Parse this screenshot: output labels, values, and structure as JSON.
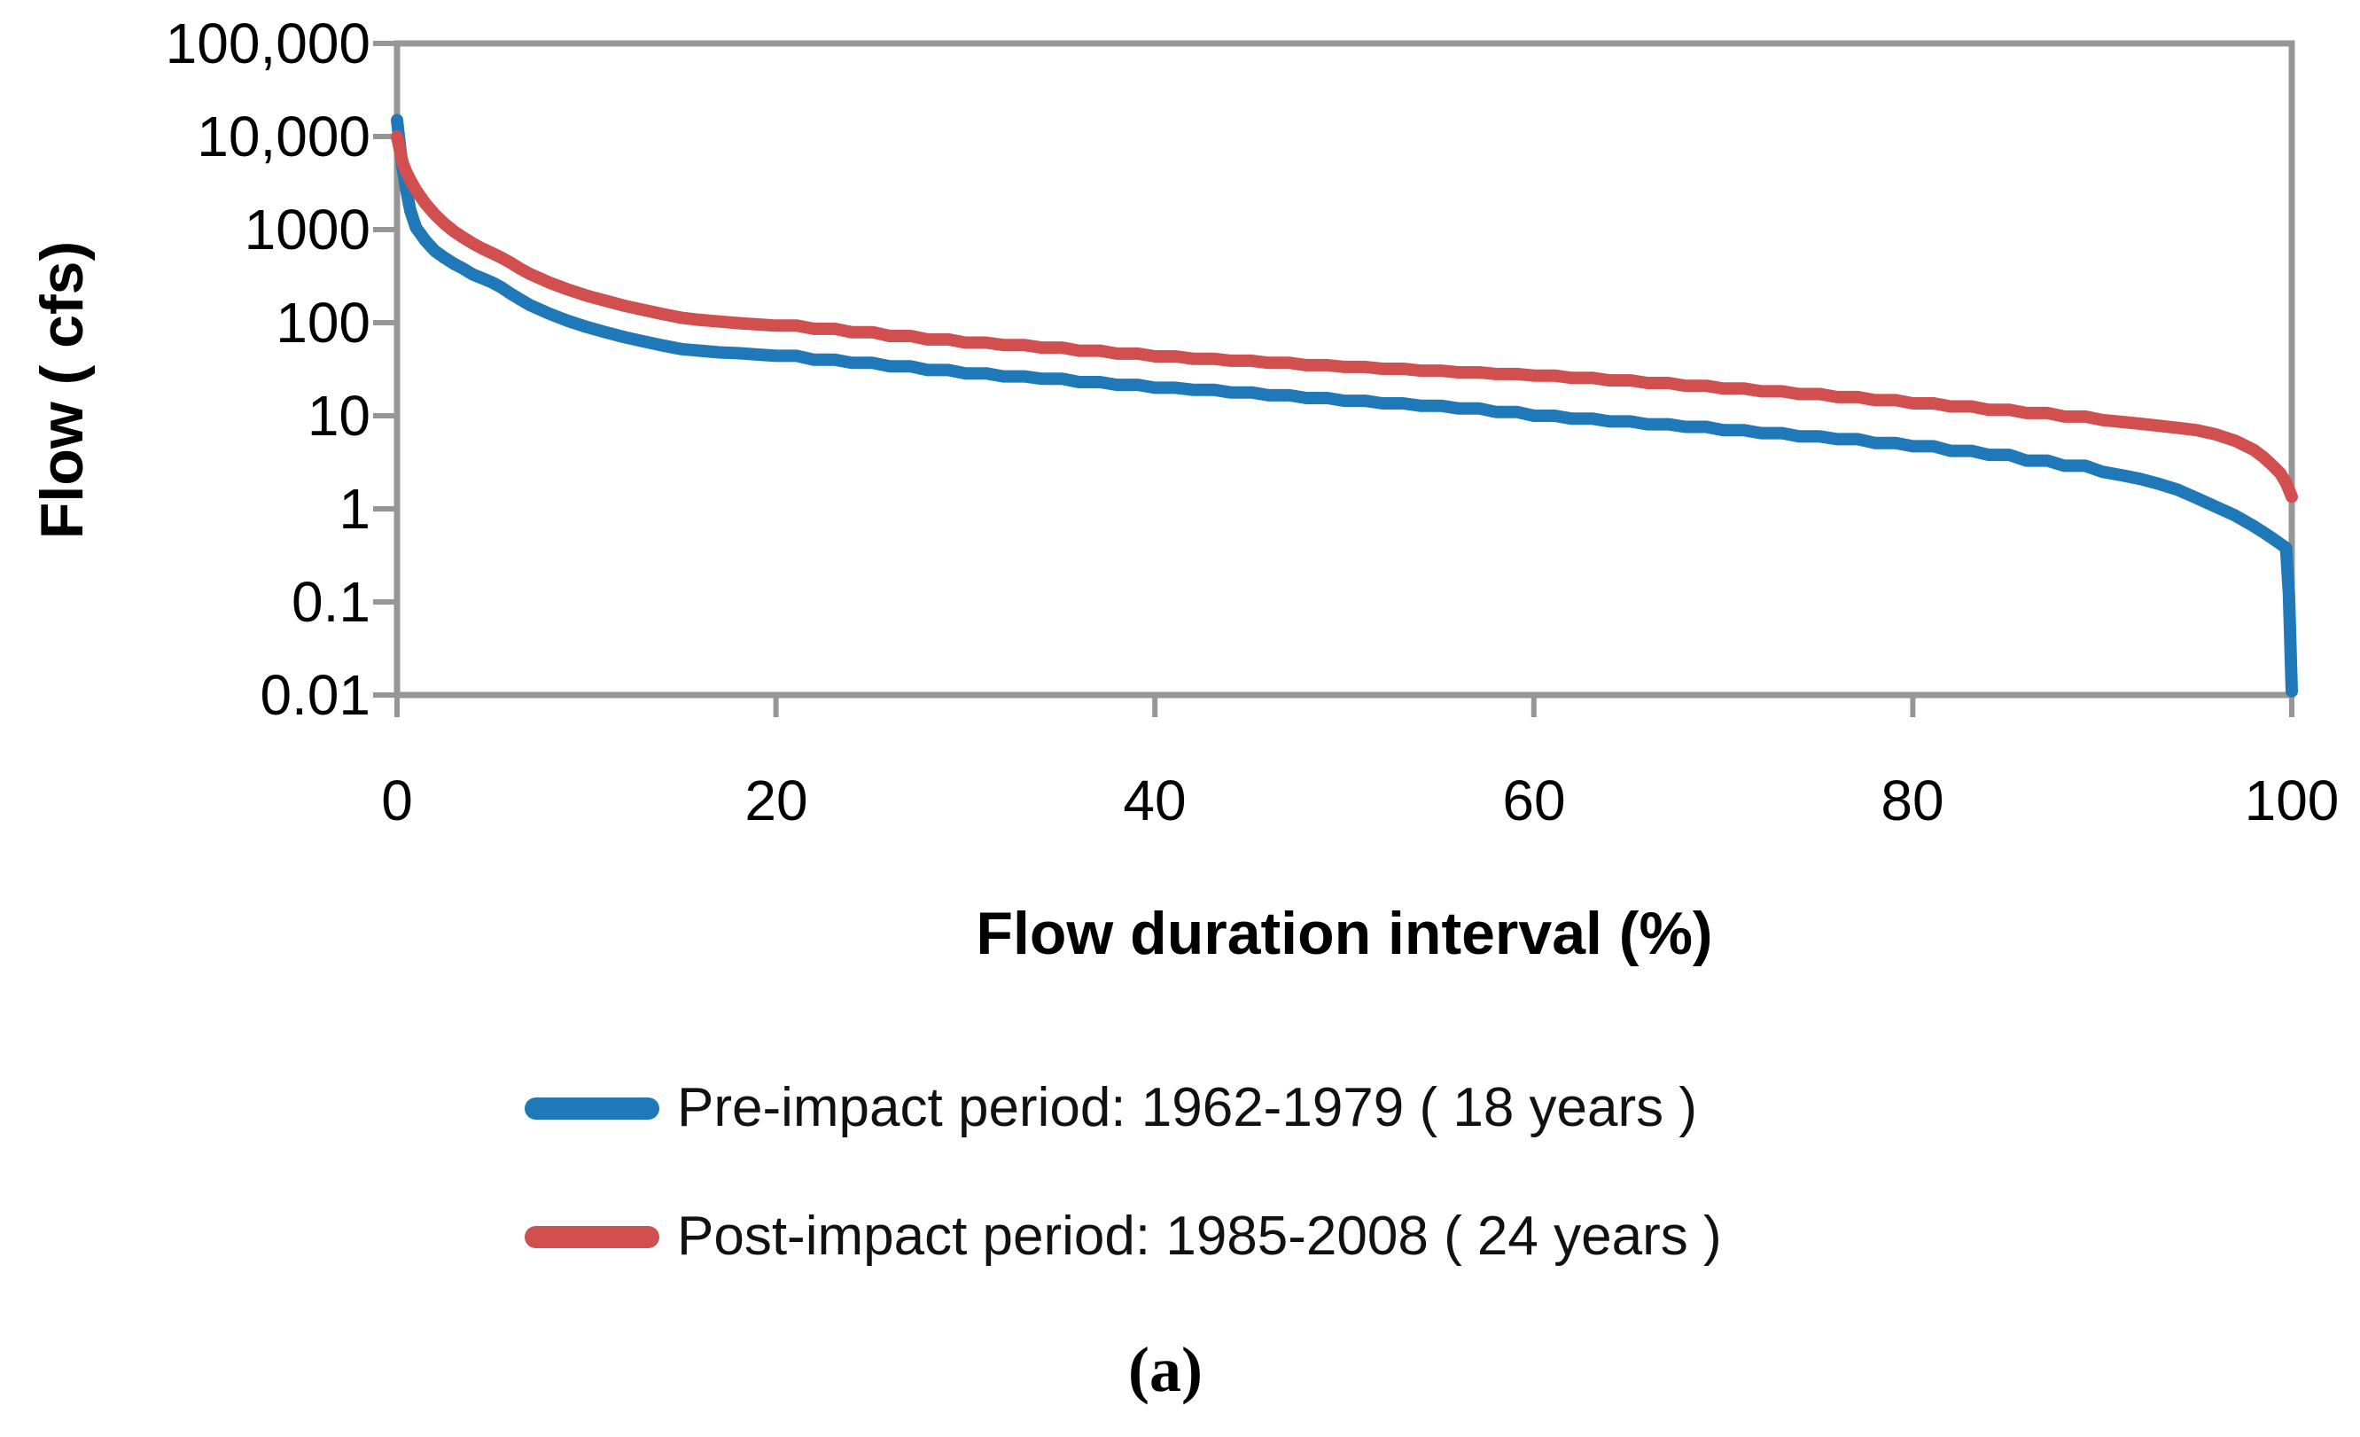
{
  "figure": {
    "background": "#FFFFFF",
    "caption": "(a)"
  },
  "chart_data": {
    "type": "line",
    "title": "",
    "xlabel": "Flow duration interval (%)",
    "ylabel": "Flow ( cfs)",
    "x_tick_labels": [
      "0",
      "20",
      "40",
      "60",
      "80",
      "100"
    ],
    "y_tick_labels": [
      "100,000",
      "10,000",
      "1000",
      "100",
      "10",
      "1",
      "0.1",
      "0.01"
    ],
    "xlim": [
      0,
      100
    ],
    "ylim": [
      0.01,
      100000
    ],
    "y_scale": "log",
    "grid": false,
    "axis_color": "#969696",
    "text_color": "#000000",
    "legend_position": "below-chart",
    "series": [
      {
        "name": "Pre-impact period: 1962-1979 ( 18 years )",
        "color": "#1F78B7",
        "points": [
          [
            0,
            15000
          ],
          [
            0.15,
            8000
          ],
          [
            0.3,
            4500
          ],
          [
            0.5,
            2600
          ],
          [
            0.7,
            1600
          ],
          [
            1,
            1050
          ],
          [
            1.5,
            760
          ],
          [
            2,
            590
          ],
          [
            2.5,
            500
          ],
          [
            3,
            430
          ],
          [
            3.5,
            380
          ],
          [
            4,
            330
          ],
          [
            4.5,
            300
          ],
          [
            5,
            272
          ],
          [
            5.5,
            240
          ],
          [
            6,
            205
          ],
          [
            6.5,
            178
          ],
          [
            7,
            155
          ],
          [
            8,
            126
          ],
          [
            9,
            105
          ],
          [
            10,
            90
          ],
          [
            11,
            79
          ],
          [
            12,
            70
          ],
          [
            13,
            63
          ],
          [
            14,
            57
          ],
          [
            15,
            52
          ],
          [
            16,
            50
          ],
          [
            17,
            48
          ],
          [
            18,
            47
          ],
          [
            19,
            45.5
          ],
          [
            20,
            44
          ],
          [
            22,
            40
          ],
          [
            24,
            37
          ],
          [
            26,
            34
          ],
          [
            28,
            31
          ],
          [
            30,
            28.5
          ],
          [
            32,
            26.5
          ],
          [
            34,
            25
          ],
          [
            36,
            23
          ],
          [
            38,
            21.5
          ],
          [
            40,
            20
          ],
          [
            42,
            19
          ],
          [
            44,
            17.8
          ],
          [
            46,
            16.6
          ],
          [
            48,
            15.5
          ],
          [
            50,
            14.5
          ],
          [
            52,
            13.6
          ],
          [
            54,
            12.8
          ],
          [
            56,
            12
          ],
          [
            58,
            11
          ],
          [
            60,
            10
          ],
          [
            62,
            9.3
          ],
          [
            64,
            8.7
          ],
          [
            66,
            8.1
          ],
          [
            68,
            7.6
          ],
          [
            70,
            7
          ],
          [
            72,
            6.5
          ],
          [
            74,
            6
          ],
          [
            76,
            5.6
          ],
          [
            78,
            5.1
          ],
          [
            80,
            4.7
          ],
          [
            82,
            4.2
          ],
          [
            84,
            3.8
          ],
          [
            86,
            3.3
          ],
          [
            88,
            2.9
          ],
          [
            90,
            2.5
          ],
          [
            91,
            2.3
          ],
          [
            92,
            2.1
          ],
          [
            93,
            1.85
          ],
          [
            94,
            1.6
          ],
          [
            95,
            1.3
          ],
          [
            96,
            1.05
          ],
          [
            97,
            0.85
          ],
          [
            98,
            0.65
          ],
          [
            98.5,
            0.56
          ],
          [
            99,
            0.48
          ],
          [
            99.4,
            0.42
          ],
          [
            99.7,
            0.38
          ],
          [
            99.85,
            0.12
          ],
          [
            100,
            0.011
          ]
        ]
      },
      {
        "name": "Post-impact period: 1985-2008 ( 24 years )",
        "color": "#D14F4F",
        "points": [
          [
            0,
            10000
          ],
          [
            0.15,
            7200
          ],
          [
            0.3,
            5200
          ],
          [
            0.5,
            4100
          ],
          [
            0.7,
            3400
          ],
          [
            1,
            2650
          ],
          [
            1.5,
            1900
          ],
          [
            2,
            1450
          ],
          [
            2.5,
            1160
          ],
          [
            3,
            960
          ],
          [
            3.5,
            820
          ],
          [
            4,
            710
          ],
          [
            4.5,
            625
          ],
          [
            5,
            560
          ],
          [
            5.5,
            500
          ],
          [
            6,
            440
          ],
          [
            6.5,
            380
          ],
          [
            7,
            335
          ],
          [
            8,
            272
          ],
          [
            9,
            228
          ],
          [
            10,
            195
          ],
          [
            11,
            172
          ],
          [
            12,
            152
          ],
          [
            13,
            137
          ],
          [
            14,
            124
          ],
          [
            15,
            113
          ],
          [
            16,
            107
          ],
          [
            17,
            103
          ],
          [
            18,
            99
          ],
          [
            19,
            96
          ],
          [
            20,
            93
          ],
          [
            22,
            86
          ],
          [
            24,
            79
          ],
          [
            26,
            72
          ],
          [
            28,
            66
          ],
          [
            30,
            61
          ],
          [
            32,
            57.5
          ],
          [
            34,
            54
          ],
          [
            36,
            50
          ],
          [
            38,
            46.5
          ],
          [
            40,
            43.5
          ],
          [
            42,
            41
          ],
          [
            44,
            39
          ],
          [
            46,
            37
          ],
          [
            48,
            35
          ],
          [
            50,
            33.5
          ],
          [
            52,
            32
          ],
          [
            54,
            30.5
          ],
          [
            56,
            29.3
          ],
          [
            58,
            28.1
          ],
          [
            60,
            27
          ],
          [
            62,
            25.5
          ],
          [
            64,
            24
          ],
          [
            66,
            22.5
          ],
          [
            68,
            21
          ],
          [
            70,
            19.6
          ],
          [
            72,
            18.3
          ],
          [
            74,
            17.1
          ],
          [
            76,
            15.9
          ],
          [
            78,
            14.7
          ],
          [
            80,
            13.6
          ],
          [
            82,
            12.6
          ],
          [
            84,
            11.6
          ],
          [
            86,
            10.7
          ],
          [
            88,
            9.8
          ],
          [
            90,
            9
          ],
          [
            91,
            8.6
          ],
          [
            92,
            8.2
          ],
          [
            93,
            7.8
          ],
          [
            94,
            7.4
          ],
          [
            95,
            7
          ],
          [
            96,
            6.3
          ],
          [
            97,
            5.4
          ],
          [
            98,
            4.3
          ],
          [
            98.5,
            3.6
          ],
          [
            99,
            2.9
          ],
          [
            99.4,
            2.4
          ],
          [
            99.7,
            1.9
          ],
          [
            100,
            1.35
          ]
        ]
      }
    ]
  }
}
